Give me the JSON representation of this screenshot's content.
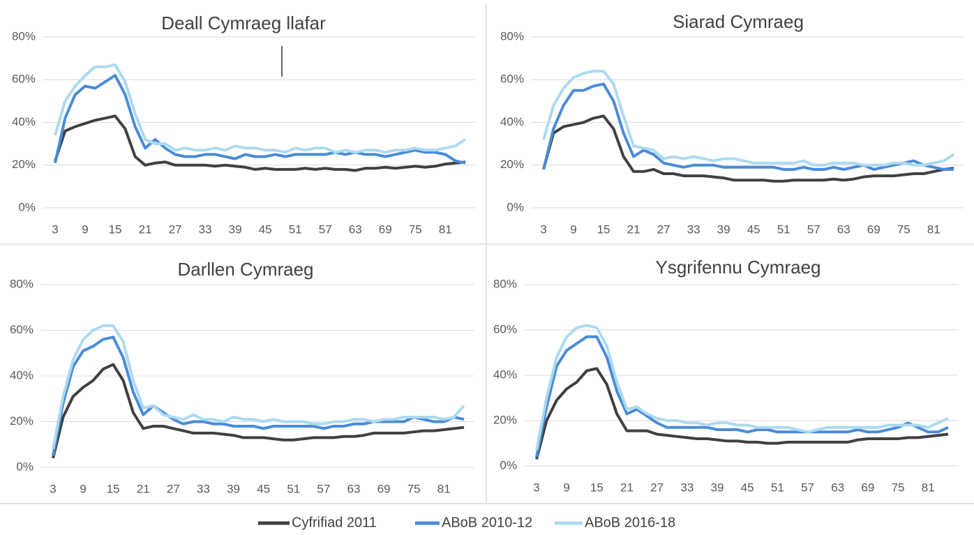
{
  "chart_data": [
    {
      "type": "line",
      "title": "Deall Cymraeg llafar",
      "x": [
        3,
        5,
        7,
        9,
        11,
        13,
        15,
        17,
        19,
        21,
        23,
        25,
        27,
        29,
        31,
        33,
        35,
        37,
        39,
        41,
        43,
        45,
        47,
        49,
        51,
        53,
        55,
        57,
        59,
        61,
        63,
        65,
        67,
        69,
        71,
        73,
        75,
        77,
        79,
        81,
        83,
        85
      ],
      "xlim": [
        3,
        85
      ],
      "xticks": [
        3,
        9,
        15,
        21,
        27,
        33,
        39,
        45,
        51,
        57,
        63,
        69,
        75,
        81
      ],
      "ylim": [
        0,
        80
      ],
      "yticks": [
        {
          "value": 0,
          "label": "0%"
        },
        {
          "value": 20,
          "label": "20%"
        },
        {
          "value": 40,
          "label": "40%"
        },
        {
          "value": 60,
          "label": "60%"
        },
        {
          "value": 80,
          "label": "80%"
        }
      ],
      "grid": true,
      "series": [
        {
          "name": "Cyfrifiad 2011",
          "color": "#404040",
          "values": [
            22,
            36,
            38,
            39.5,
            41,
            42,
            43,
            37,
            24,
            20,
            21,
            21.5,
            20,
            20,
            20,
            20,
            19.5,
            20,
            19.5,
            19,
            18,
            18.5,
            18,
            18,
            18,
            18.5,
            18,
            18.5,
            18,
            18,
            17.5,
            18.5,
            18.5,
            19,
            18.5,
            19,
            19.5,
            19,
            19.5,
            20.5,
            21,
            21.5
          ]
        },
        {
          "name": "ABoB 2010-12",
          "color": "#4a8bd8",
          "values": [
            21,
            42,
            53,
            57,
            56,
            59,
            62,
            53,
            38,
            28,
            32,
            28,
            25,
            24,
            24,
            25,
            25,
            24,
            23,
            25,
            24,
            24,
            25,
            24,
            25,
            25,
            25,
            25,
            26,
            25,
            26,
            25,
            25,
            24,
            25,
            26,
            27,
            26,
            26,
            25,
            22,
            21
          ]
        },
        {
          "name": "ABoB 2016-18",
          "color": "#acdaf0",
          "values": [
            34,
            50,
            57,
            62,
            66,
            66,
            67,
            59,
            44,
            32,
            30,
            30,
            27,
            28,
            27,
            27,
            28,
            27,
            29,
            28,
            28,
            27,
            27,
            26,
            28,
            27,
            28,
            28,
            26,
            27,
            26,
            27,
            27,
            26,
            27,
            27,
            28,
            27,
            27,
            28,
            29,
            32
          ]
        }
      ]
    },
    {
      "type": "line",
      "title": "Siarad Cymraeg",
      "x": [
        3,
        5,
        7,
        9,
        11,
        13,
        15,
        17,
        19,
        21,
        23,
        25,
        27,
        29,
        31,
        33,
        35,
        37,
        39,
        41,
        43,
        45,
        47,
        49,
        51,
        53,
        55,
        57,
        59,
        61,
        63,
        65,
        67,
        69,
        71,
        73,
        75,
        77,
        79,
        81,
        83,
        85
      ],
      "xlim": [
        3,
        85
      ],
      "xticks": [
        3,
        9,
        15,
        21,
        27,
        33,
        39,
        45,
        51,
        57,
        63,
        69,
        75,
        81
      ],
      "ylim": [
        0,
        80
      ],
      "yticks": [
        {
          "value": 0,
          "label": "0%"
        },
        {
          "value": 20,
          "label": "20%"
        },
        {
          "value": 40,
          "label": "40%"
        },
        {
          "value": 60,
          "label": "60%"
        },
        {
          "value": 80,
          "label": "80%"
        }
      ],
      "grid": true,
      "series": [
        {
          "name": "Cyfrifiad 2011",
          "color": "#404040",
          "values": [
            18,
            35,
            38,
            39,
            40,
            42,
            43,
            37,
            24,
            17,
            17,
            18,
            16,
            16,
            15,
            15,
            15,
            14.5,
            14,
            13,
            13,
            13,
            13,
            12.5,
            12.5,
            13,
            13,
            13,
            13,
            13.5,
            13,
            13.5,
            14.5,
            15,
            15,
            15,
            15.5,
            16,
            16,
            17,
            18,
            18.5
          ]
        },
        {
          "name": "ABoB 2010-12",
          "color": "#4a8bd8",
          "values": [
            18,
            37,
            48,
            55,
            55,
            57,
            58,
            50,
            35,
            24,
            27,
            25,
            21,
            20,
            19,
            20,
            20,
            20,
            19,
            19,
            19,
            19,
            19,
            19,
            18,
            18,
            19,
            18,
            18,
            19,
            18,
            19,
            20,
            18,
            19,
            20,
            21,
            22,
            20,
            19,
            18,
            18
          ]
        },
        {
          "name": "ABoB 2016-18",
          "color": "#acdaf0",
          "values": [
            32,
            48,
            56,
            61,
            63,
            64,
            64,
            58,
            43,
            29,
            28,
            27,
            23,
            24,
            23,
            24,
            23,
            22,
            23,
            23,
            22,
            21,
            21,
            21,
            21,
            21,
            22,
            20,
            20,
            21,
            21,
            21,
            20,
            20,
            20,
            21,
            21,
            20,
            20,
            21,
            22,
            25
          ]
        }
      ]
    },
    {
      "type": "line",
      "title": "Darllen Cymraeg",
      "x": [
        3,
        5,
        7,
        9,
        11,
        13,
        15,
        17,
        19,
        21,
        23,
        25,
        27,
        29,
        31,
        33,
        35,
        37,
        39,
        41,
        43,
        45,
        47,
        49,
        51,
        53,
        55,
        57,
        59,
        61,
        63,
        65,
        67,
        69,
        71,
        73,
        75,
        77,
        79,
        81,
        83,
        85
      ],
      "xlim": [
        3,
        85
      ],
      "xticks": [
        3,
        9,
        15,
        21,
        27,
        33,
        39,
        45,
        51,
        57,
        63,
        69,
        75,
        81
      ],
      "ylim": [
        0,
        80
      ],
      "yticks": [
        {
          "value": 0,
          "label": "0%"
        },
        {
          "value": 20,
          "label": "20%"
        },
        {
          "value": 40,
          "label": "40%"
        },
        {
          "value": 60,
          "label": "60%"
        },
        {
          "value": 80,
          "label": "80%"
        }
      ],
      "grid": true,
      "series": [
        {
          "name": "Cyfrifiad 2011",
          "color": "#404040",
          "values": [
            4,
            22,
            31,
            35,
            38,
            43,
            45,
            38,
            24,
            17,
            18,
            18,
            17,
            16,
            15,
            15,
            15,
            14.5,
            14,
            13,
            13,
            13,
            12.5,
            12,
            12,
            12.5,
            13,
            13,
            13,
            13.5,
            13.5,
            14,
            15,
            15,
            15,
            15,
            15.5,
            16,
            16,
            16.5,
            17,
            17.5
          ]
        },
        {
          "name": "ABoB 2010-12",
          "color": "#4a8bd8",
          "values": [
            5,
            28,
            44,
            51,
            53,
            56,
            57,
            48,
            33,
            23,
            27,
            24,
            21,
            19,
            20,
            20,
            19,
            19,
            18,
            18,
            18,
            17,
            18,
            18,
            18,
            18,
            18,
            17,
            18,
            18,
            19,
            19,
            20,
            20,
            20,
            20,
            22,
            21,
            20,
            20,
            22,
            21
          ]
        },
        {
          "name": "ABoB 2016-18",
          "color": "#acdaf0",
          "values": [
            8,
            31,
            47,
            56,
            60,
            62,
            62,
            55,
            38,
            26,
            27,
            23,
            22,
            21,
            23,
            21,
            21,
            20,
            22,
            21,
            21,
            20,
            21,
            20,
            20,
            20,
            19,
            19,
            20,
            20,
            21,
            21,
            20,
            21,
            21,
            22,
            22,
            22,
            22,
            21,
            22,
            27
          ]
        }
      ]
    },
    {
      "type": "line",
      "title": "Ysgrifennu Cymraeg",
      "x": [
        3,
        5,
        7,
        9,
        11,
        13,
        15,
        17,
        19,
        21,
        23,
        25,
        27,
        29,
        31,
        33,
        35,
        37,
        39,
        41,
        43,
        45,
        47,
        49,
        51,
        53,
        55,
        57,
        59,
        61,
        63,
        65,
        67,
        69,
        71,
        73,
        75,
        77,
        79,
        81,
        83,
        85
      ],
      "xlim": [
        3,
        85
      ],
      "xticks": [
        3,
        9,
        15,
        21,
        27,
        33,
        39,
        45,
        51,
        57,
        63,
        69,
        75,
        81
      ],
      "ylim": [
        0,
        80
      ],
      "yticks": [
        {
          "value": 0,
          "label": "0%"
        },
        {
          "value": 20,
          "label": "20%"
        },
        {
          "value": 40,
          "label": "40%"
        },
        {
          "value": 60,
          "label": "60%"
        },
        {
          "value": 80,
          "label": "80%"
        }
      ],
      "grid": true,
      "series": [
        {
          "name": "Cyfrifiad 2011",
          "color": "#404040",
          "values": [
            3,
            20,
            29,
            34,
            37,
            42,
            43,
            36,
            23,
            15.5,
            15.5,
            15.5,
            14,
            13.5,
            13,
            12.5,
            12,
            12,
            11.5,
            11,
            11,
            10.5,
            10.5,
            10,
            10,
            10.5,
            10.5,
            10.5,
            10.5,
            10.5,
            10.5,
            10.5,
            11.5,
            12,
            12,
            12,
            12,
            12.5,
            12.5,
            13,
            13.5,
            14
          ]
        },
        {
          "name": "ABoB 2010-12",
          "color": "#4a8bd8",
          "values": [
            4,
            26,
            44,
            51,
            54,
            57,
            57,
            48,
            33,
            23,
            25,
            22,
            19,
            17,
            17,
            17,
            17,
            17,
            16,
            16,
            16,
            15,
            16,
            16,
            15,
            15,
            15,
            15,
            15,
            15,
            15,
            15,
            16,
            15,
            15,
            16,
            17,
            19,
            17,
            15,
            15,
            17
          ]
        },
        {
          "name": "ABoB 2016-18",
          "color": "#acdaf0",
          "values": [
            7,
            30,
            48,
            57,
            61,
            62,
            61,
            53,
            37,
            25,
            26,
            23,
            21,
            20,
            20,
            19,
            19,
            18,
            19,
            19,
            18,
            18,
            17,
            17,
            17,
            17,
            16,
            15,
            16,
            17,
            17,
            17,
            17,
            17,
            17,
            18,
            18,
            18,
            18,
            17,
            19,
            21
          ]
        }
      ]
    }
  ]
}
